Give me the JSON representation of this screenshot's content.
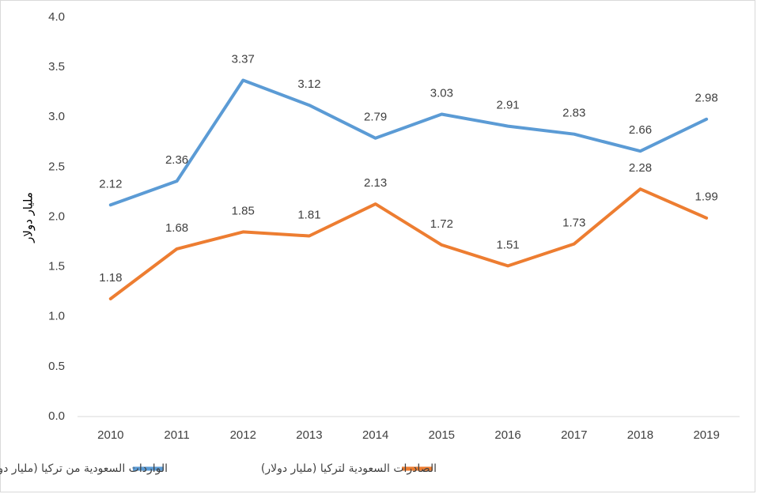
{
  "chart_data": {
    "type": "line",
    "title": "",
    "xlabel": "",
    "ylabel": "مليار دولار",
    "ylim": [
      0,
      4.0
    ],
    "ytick_step": 0.5,
    "ytick_labels": [
      "0.0",
      "0.5",
      "1.0",
      "1.5",
      "2.0",
      "2.5",
      "3.0",
      "3.5",
      "4.0"
    ],
    "grid": false,
    "legend_position": "bottom",
    "categories": [
      "2010",
      "2011",
      "2012",
      "2013",
      "2014",
      "2015",
      "2016",
      "2017",
      "2018",
      "2019"
    ],
    "series": [
      {
        "name": "الواردات السعودية من تركيا (مليار دولار)",
        "color": "#5b9bd5",
        "values": [
          2.12,
          2.36,
          3.37,
          3.12,
          2.79,
          3.03,
          2.91,
          2.83,
          2.66,
          2.98
        ],
        "labels": [
          "2.12",
          "2.36",
          "3.37",
          "3.12",
          "2.79",
          "3.03",
          "2.91",
          "2.83",
          "2.66",
          "2.98"
        ]
      },
      {
        "name": "الصادرات السعودية لتركيا (مليار دولار)",
        "color": "#ed7d31",
        "values": [
          1.18,
          1.68,
          1.85,
          1.81,
          2.13,
          1.72,
          1.51,
          1.73,
          2.28,
          1.99
        ],
        "labels": [
          "1.18",
          "1.68",
          "1.85",
          "1.81",
          "2.13",
          "1.72",
          "1.51",
          "1.73",
          "2.28",
          "1.99"
        ]
      }
    ]
  }
}
